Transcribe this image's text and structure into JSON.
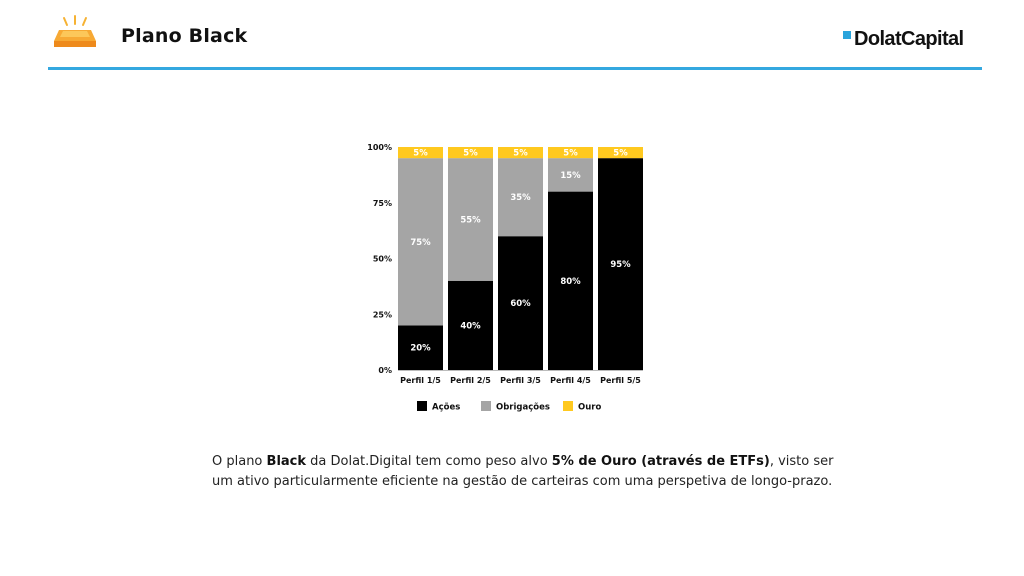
{
  "header": {
    "title": "Plano Black",
    "logo_text": "DolatCapital",
    "icon": "gold-bar-icon"
  },
  "colors": {
    "accent": "#34a8e0",
    "acoes": "#000000",
    "obrigacoes": "#a5a5a5",
    "ouro": "#ffc91f"
  },
  "chart_data": {
    "type": "bar",
    "stacked": true,
    "categories": [
      "Perfil 1/5",
      "Perfil 2/5",
      "Perfil 3/5",
      "Perfil 4/5",
      "Perfil 5/5"
    ],
    "series": [
      {
        "name": "Ações",
        "values": [
          20,
          40,
          60,
          80,
          95
        ],
        "color": "#000000"
      },
      {
        "name": "Obrigações",
        "values": [
          75,
          55,
          35,
          15,
          0
        ],
        "color": "#a5a5a5"
      },
      {
        "name": "Ouro",
        "values": [
          5,
          5,
          5,
          5,
          5
        ],
        "color": "#ffc91f"
      }
    ],
    "yticks": [
      "0%",
      "25%",
      "50%",
      "75%",
      "100%"
    ],
    "ylim": [
      0,
      100
    ],
    "legend_position": "bottom",
    "grid": false
  },
  "caption": {
    "p1": "O plano ",
    "b1": "Black",
    "p2": " da Dolat.Digital tem como peso alvo ",
    "b2": "5% de Ouro (através de ETFs)",
    "p3": ", visto ser um ativo particularmente eficiente na gestão de carteiras com uma perspetiva de longo-prazo."
  }
}
